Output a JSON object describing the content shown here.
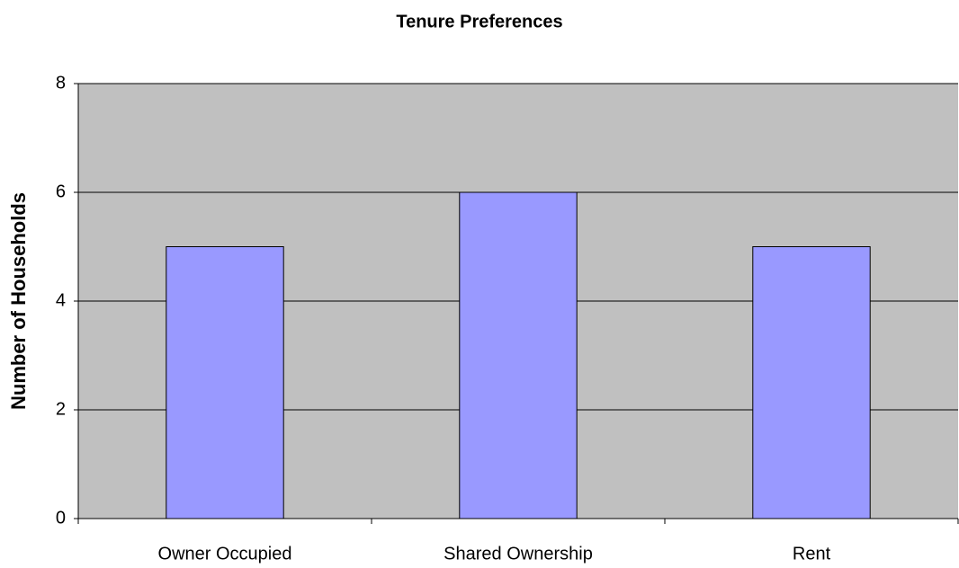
{
  "chart_data": {
    "type": "bar",
    "title": "Tenure Preferences",
    "y_label": "Number of Households",
    "categories": [
      "Owner Occupied",
      "Shared Ownership",
      "Rent"
    ],
    "values": [
      5,
      6,
      5
    ],
    "color": "#9999ff",
    "plot_background": "#c0c0c0",
    "ylim": [
      0,
      8
    ],
    "yticks": [
      0,
      2,
      4,
      6,
      8
    ],
    "grid": true
  }
}
